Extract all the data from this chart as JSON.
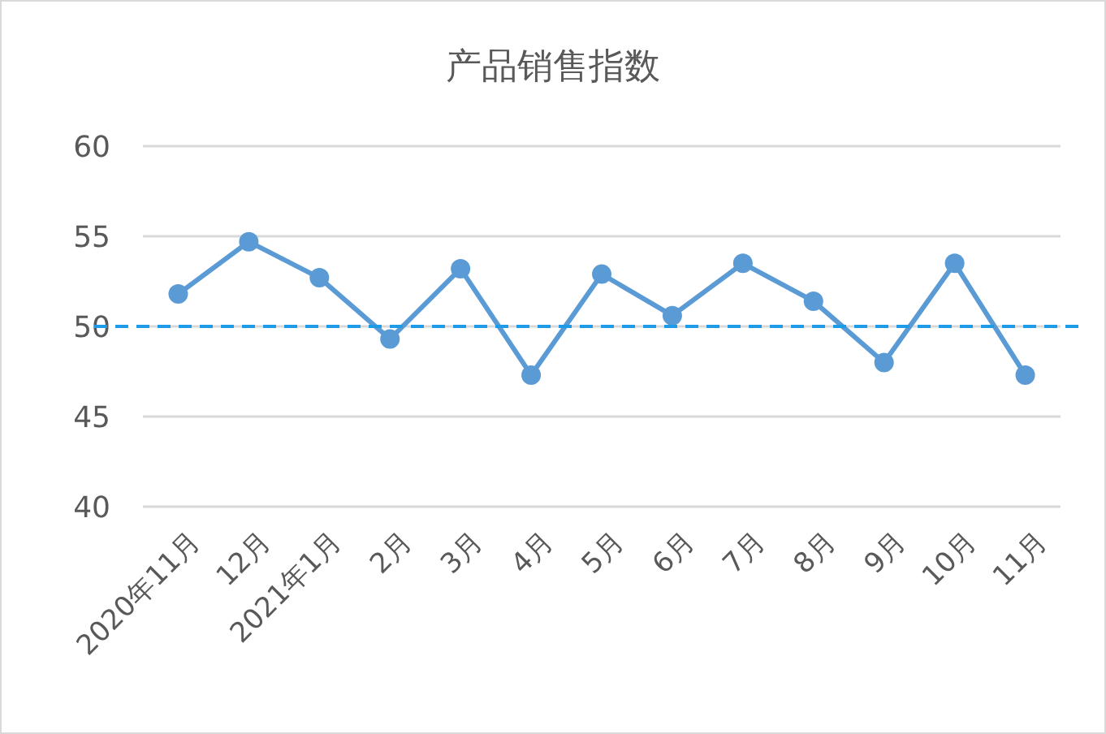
{
  "chart_data": {
    "type": "line",
    "title": "产品销售指数",
    "categories": [
      "2020年11月",
      "12月",
      "2021年1月",
      "2月",
      "3月",
      "4月",
      "5月",
      "6月",
      "7月",
      "8月",
      "9月",
      "10月",
      "11月"
    ],
    "series": [
      {
        "color": "#5b9bd5",
        "values": [
          51.8,
          54.7,
          52.7,
          49.3,
          53.2,
          47.3,
          52.9,
          50.6,
          53.5,
          51.4,
          48.0,
          53.5,
          47.3
        ]
      }
    ],
    "ylim": [
      40,
      60
    ],
    "yticks": [
      40,
      45,
      50,
      55,
      60
    ],
    "grid": "y",
    "marker": "circle",
    "line_style": "solid",
    "ref_lines": [
      {
        "axis": "y",
        "value": 50,
        "color": "#1e9be6",
        "line_style": "dashed"
      }
    ]
  }
}
